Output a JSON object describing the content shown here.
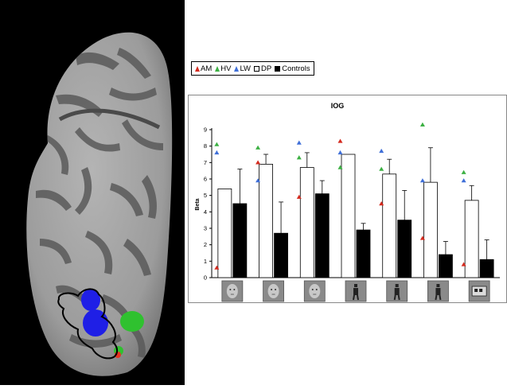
{
  "legend": {
    "items": [
      {
        "marker": "triangle",
        "label": "AM",
        "color": "#d42a1e"
      },
      {
        "marker": "triangle",
        "label": "HV",
        "color": "#3cb043"
      },
      {
        "marker": "triangle",
        "label": "LW",
        "color": "#3f6fd8"
      },
      {
        "marker": "open-square",
        "label": "DP",
        "color": "#ffffff"
      },
      {
        "marker": "filled-square",
        "label": "Controls",
        "color": "#000000"
      }
    ]
  },
  "chart_data": {
    "type": "bar",
    "title": "IOG",
    "xlabel": "",
    "ylabel": "Beta",
    "ylim": [
      0,
      9
    ],
    "yticks": [
      "0",
      "1",
      "2",
      "3",
      "4",
      "5",
      "6",
      "7",
      "8",
      "9"
    ],
    "grid": false,
    "legend_position": "top-left",
    "categories": [
      "face",
      "face",
      "face",
      "body",
      "body",
      "body",
      "object"
    ],
    "category_icons": [
      "face-photo",
      "face-photo",
      "face-photo",
      "body-photo",
      "body-photo",
      "body-photo",
      "object-photo"
    ],
    "series": [
      {
        "name": "DP",
        "color": "#ffffff",
        "values": [
          5.4,
          6.9,
          6.7,
          7.5,
          6.3,
          5.8,
          4.7
        ],
        "error": [
          0.0,
          0.6,
          0.9,
          0.0,
          0.9,
          2.1,
          0.9
        ]
      },
      {
        "name": "Controls",
        "color": "#000000",
        "values": [
          4.5,
          2.7,
          5.1,
          2.9,
          3.5,
          1.4,
          1.1
        ],
        "error": [
          2.1,
          1.9,
          0.8,
          0.4,
          1.8,
          0.8,
          1.2
        ]
      }
    ],
    "individuals": [
      {
        "name": "AM",
        "color": "#d42a1e",
        "values": [
          0.6,
          7.0,
          4.9,
          8.3,
          4.5,
          2.4,
          0.8
        ]
      },
      {
        "name": "HV",
        "color": "#3cb043",
        "values": [
          8.1,
          7.9,
          7.3,
          6.7,
          6.6,
          9.3,
          6.4
        ]
      },
      {
        "name": "LW",
        "color": "#3f6fd8",
        "values": [
          7.6,
          5.9,
          8.2,
          7.6,
          7.7,
          5.9,
          5.9
        ]
      }
    ]
  }
}
